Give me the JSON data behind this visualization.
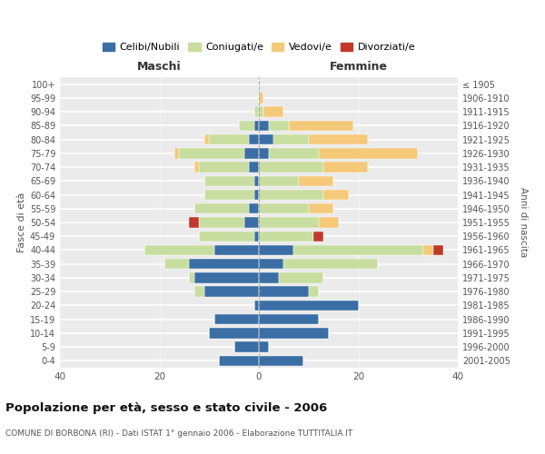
{
  "age_groups": [
    "0-4",
    "5-9",
    "10-14",
    "15-19",
    "20-24",
    "25-29",
    "30-34",
    "35-39",
    "40-44",
    "45-49",
    "50-54",
    "55-59",
    "60-64",
    "65-69",
    "70-74",
    "75-79",
    "80-84",
    "85-89",
    "90-94",
    "95-99",
    "100+"
  ],
  "birth_years": [
    "2001-2005",
    "1996-2000",
    "1991-1995",
    "1986-1990",
    "1981-1985",
    "1976-1980",
    "1971-1975",
    "1966-1970",
    "1961-1965",
    "1956-1960",
    "1951-1955",
    "1946-1950",
    "1941-1945",
    "1936-1940",
    "1931-1935",
    "1926-1930",
    "1921-1925",
    "1916-1920",
    "1911-1915",
    "1906-1910",
    "≤ 1905"
  ],
  "maschi": {
    "celibi": [
      8,
      5,
      10,
      9,
      1,
      11,
      13,
      14,
      9,
      1,
      3,
      2,
      1,
      1,
      2,
      3,
      2,
      1,
      0,
      0,
      0
    ],
    "coniugati": [
      0,
      0,
      0,
      0,
      0,
      2,
      1,
      5,
      14,
      11,
      9,
      11,
      10,
      10,
      10,
      13,
      8,
      3,
      1,
      0,
      0
    ],
    "vedovi": [
      0,
      0,
      0,
      0,
      0,
      0,
      0,
      0,
      0,
      0,
      0,
      0,
      0,
      0,
      1,
      1,
      1,
      0,
      0,
      0,
      0
    ],
    "divorziati": [
      0,
      0,
      0,
      0,
      0,
      0,
      0,
      0,
      0,
      0,
      2,
      0,
      0,
      0,
      0,
      0,
      0,
      0,
      0,
      0,
      0
    ]
  },
  "femmine": {
    "nubili": [
      9,
      2,
      14,
      12,
      20,
      10,
      4,
      5,
      7,
      0,
      0,
      0,
      0,
      0,
      0,
      2,
      3,
      2,
      0,
      0,
      0
    ],
    "coniugate": [
      0,
      0,
      0,
      0,
      0,
      2,
      9,
      19,
      26,
      11,
      12,
      10,
      13,
      8,
      13,
      10,
      7,
      4,
      1,
      0,
      0
    ],
    "vedove": [
      0,
      0,
      0,
      0,
      0,
      0,
      0,
      0,
      2,
      0,
      4,
      5,
      5,
      7,
      9,
      20,
      12,
      13,
      4,
      1,
      0
    ],
    "divorziate": [
      0,
      0,
      0,
      0,
      0,
      0,
      0,
      0,
      2,
      2,
      0,
      0,
      0,
      0,
      0,
      0,
      0,
      0,
      0,
      0,
      0
    ]
  },
  "colors": {
    "celibi_nubili": "#3a6ea5",
    "coniugati": "#c8dda0",
    "vedovi": "#f5c97a",
    "divorziati": "#c0392b"
  },
  "title": "Popolazione per età, sesso e stato civile - 2006",
  "subtitle": "COMUNE DI BORBONA (RI) - Dati ISTAT 1° gennaio 2006 - Elaborazione TUTTITALIA.IT",
  "xlabel_left": "Maschi",
  "xlabel_right": "Femmine",
  "ylabel_left": "Fasce di età",
  "ylabel_right": "Anni di nascita",
  "xlim": 40,
  "background_color": "#ffffff",
  "plot_bg_color": "#ebebeb",
  "grid_color": "#ffffff"
}
